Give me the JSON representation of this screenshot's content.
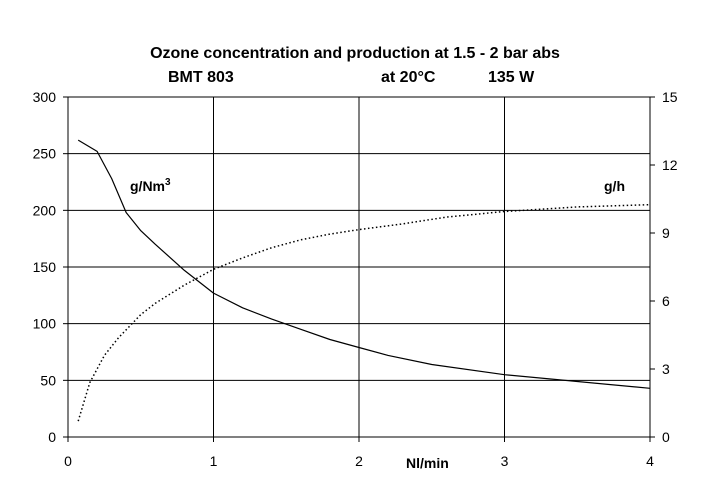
{
  "chart_data": {
    "type": "line",
    "title_line1": "Ozone concentration and production at 1.5 - 2 bar abs",
    "title_line2_model": "BMT 803",
    "title_line2_temp": "at 20°C",
    "title_line2_power": "135 W",
    "xlabel": "Nl/min",
    "ylabel_left": "g/Nm",
    "ylabel_left_sup": "3",
    "ylabel_right": "g/h",
    "xlim": [
      0,
      4
    ],
    "ylim_left": [
      0,
      300
    ],
    "ylim_right": [
      0,
      15
    ],
    "x_ticks": [
      "0",
      "1",
      "2",
      "3",
      "4"
    ],
    "y_left_ticks": [
      "0",
      "50",
      "100",
      "150",
      "200",
      "250",
      "300"
    ],
    "y_right_ticks": [
      "0",
      "3",
      "6",
      "9",
      "12",
      "15"
    ],
    "grid": "vertical lines at x = 1, 2, 3; horizontal lines at left-axis ticks",
    "series": [
      {
        "axis": "left",
        "style": "solid",
        "x": [
          0.07,
          0.2,
          0.3,
          0.4,
          0.5,
          0.6,
          0.8,
          1.0,
          1.2,
          1.4,
          1.6,
          1.8,
          2.0,
          2.2,
          2.5,
          3.0,
          3.5,
          4.0
        ],
        "y": [
          262,
          252,
          228,
          198,
          182,
          170,
          147,
          127,
          114,
          104,
          95,
          86,
          79,
          72,
          64,
          55,
          49,
          43
        ]
      },
      {
        "axis": "right",
        "style": "dotted",
        "x": [
          0.07,
          0.15,
          0.25,
          0.35,
          0.5,
          0.6,
          0.8,
          1.0,
          1.2,
          1.4,
          1.6,
          1.8,
          2.0,
          2.3,
          2.6,
          3.0,
          3.5,
          4.0
        ],
        "y": [
          0.7,
          2.4,
          3.6,
          4.4,
          5.4,
          5.9,
          6.7,
          7.4,
          7.9,
          8.35,
          8.7,
          8.95,
          9.15,
          9.4,
          9.7,
          9.95,
          10.15,
          10.25
        ]
      }
    ]
  }
}
